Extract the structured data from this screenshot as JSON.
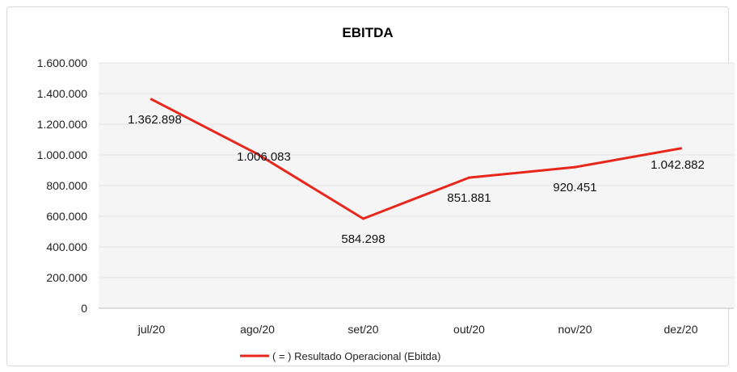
{
  "chart_data": {
    "type": "line",
    "title": "EBITDA",
    "categories": [
      "jul/20",
      "ago/20",
      "set/20",
      "out/20",
      "nov/20",
      "dez/20"
    ],
    "series": [
      {
        "name": "( = ) Resultado Operacional (Ebitda)",
        "values": [
          1362898,
          1006083,
          584298,
          851881,
          920451,
          1042882
        ],
        "labels": [
          "1.362.898",
          "1.006.083",
          "584.298",
          "851.881",
          "920.451",
          "1.042.882"
        ],
        "color": "#e8271c"
      }
    ],
    "yticks": [
      0,
      200000,
      400000,
      600000,
      800000,
      1000000,
      1200000,
      1400000,
      1600000
    ],
    "ytick_labels": [
      "0",
      "200.000",
      "400.000",
      "600.000",
      "800.000",
      "1.000.000",
      "1.200.000",
      "1.400.000",
      "1.600.000"
    ],
    "ylim": [
      0,
      1600000
    ],
    "xlabel": "",
    "ylabel": "",
    "grid": true,
    "legend_position": "bottom"
  }
}
